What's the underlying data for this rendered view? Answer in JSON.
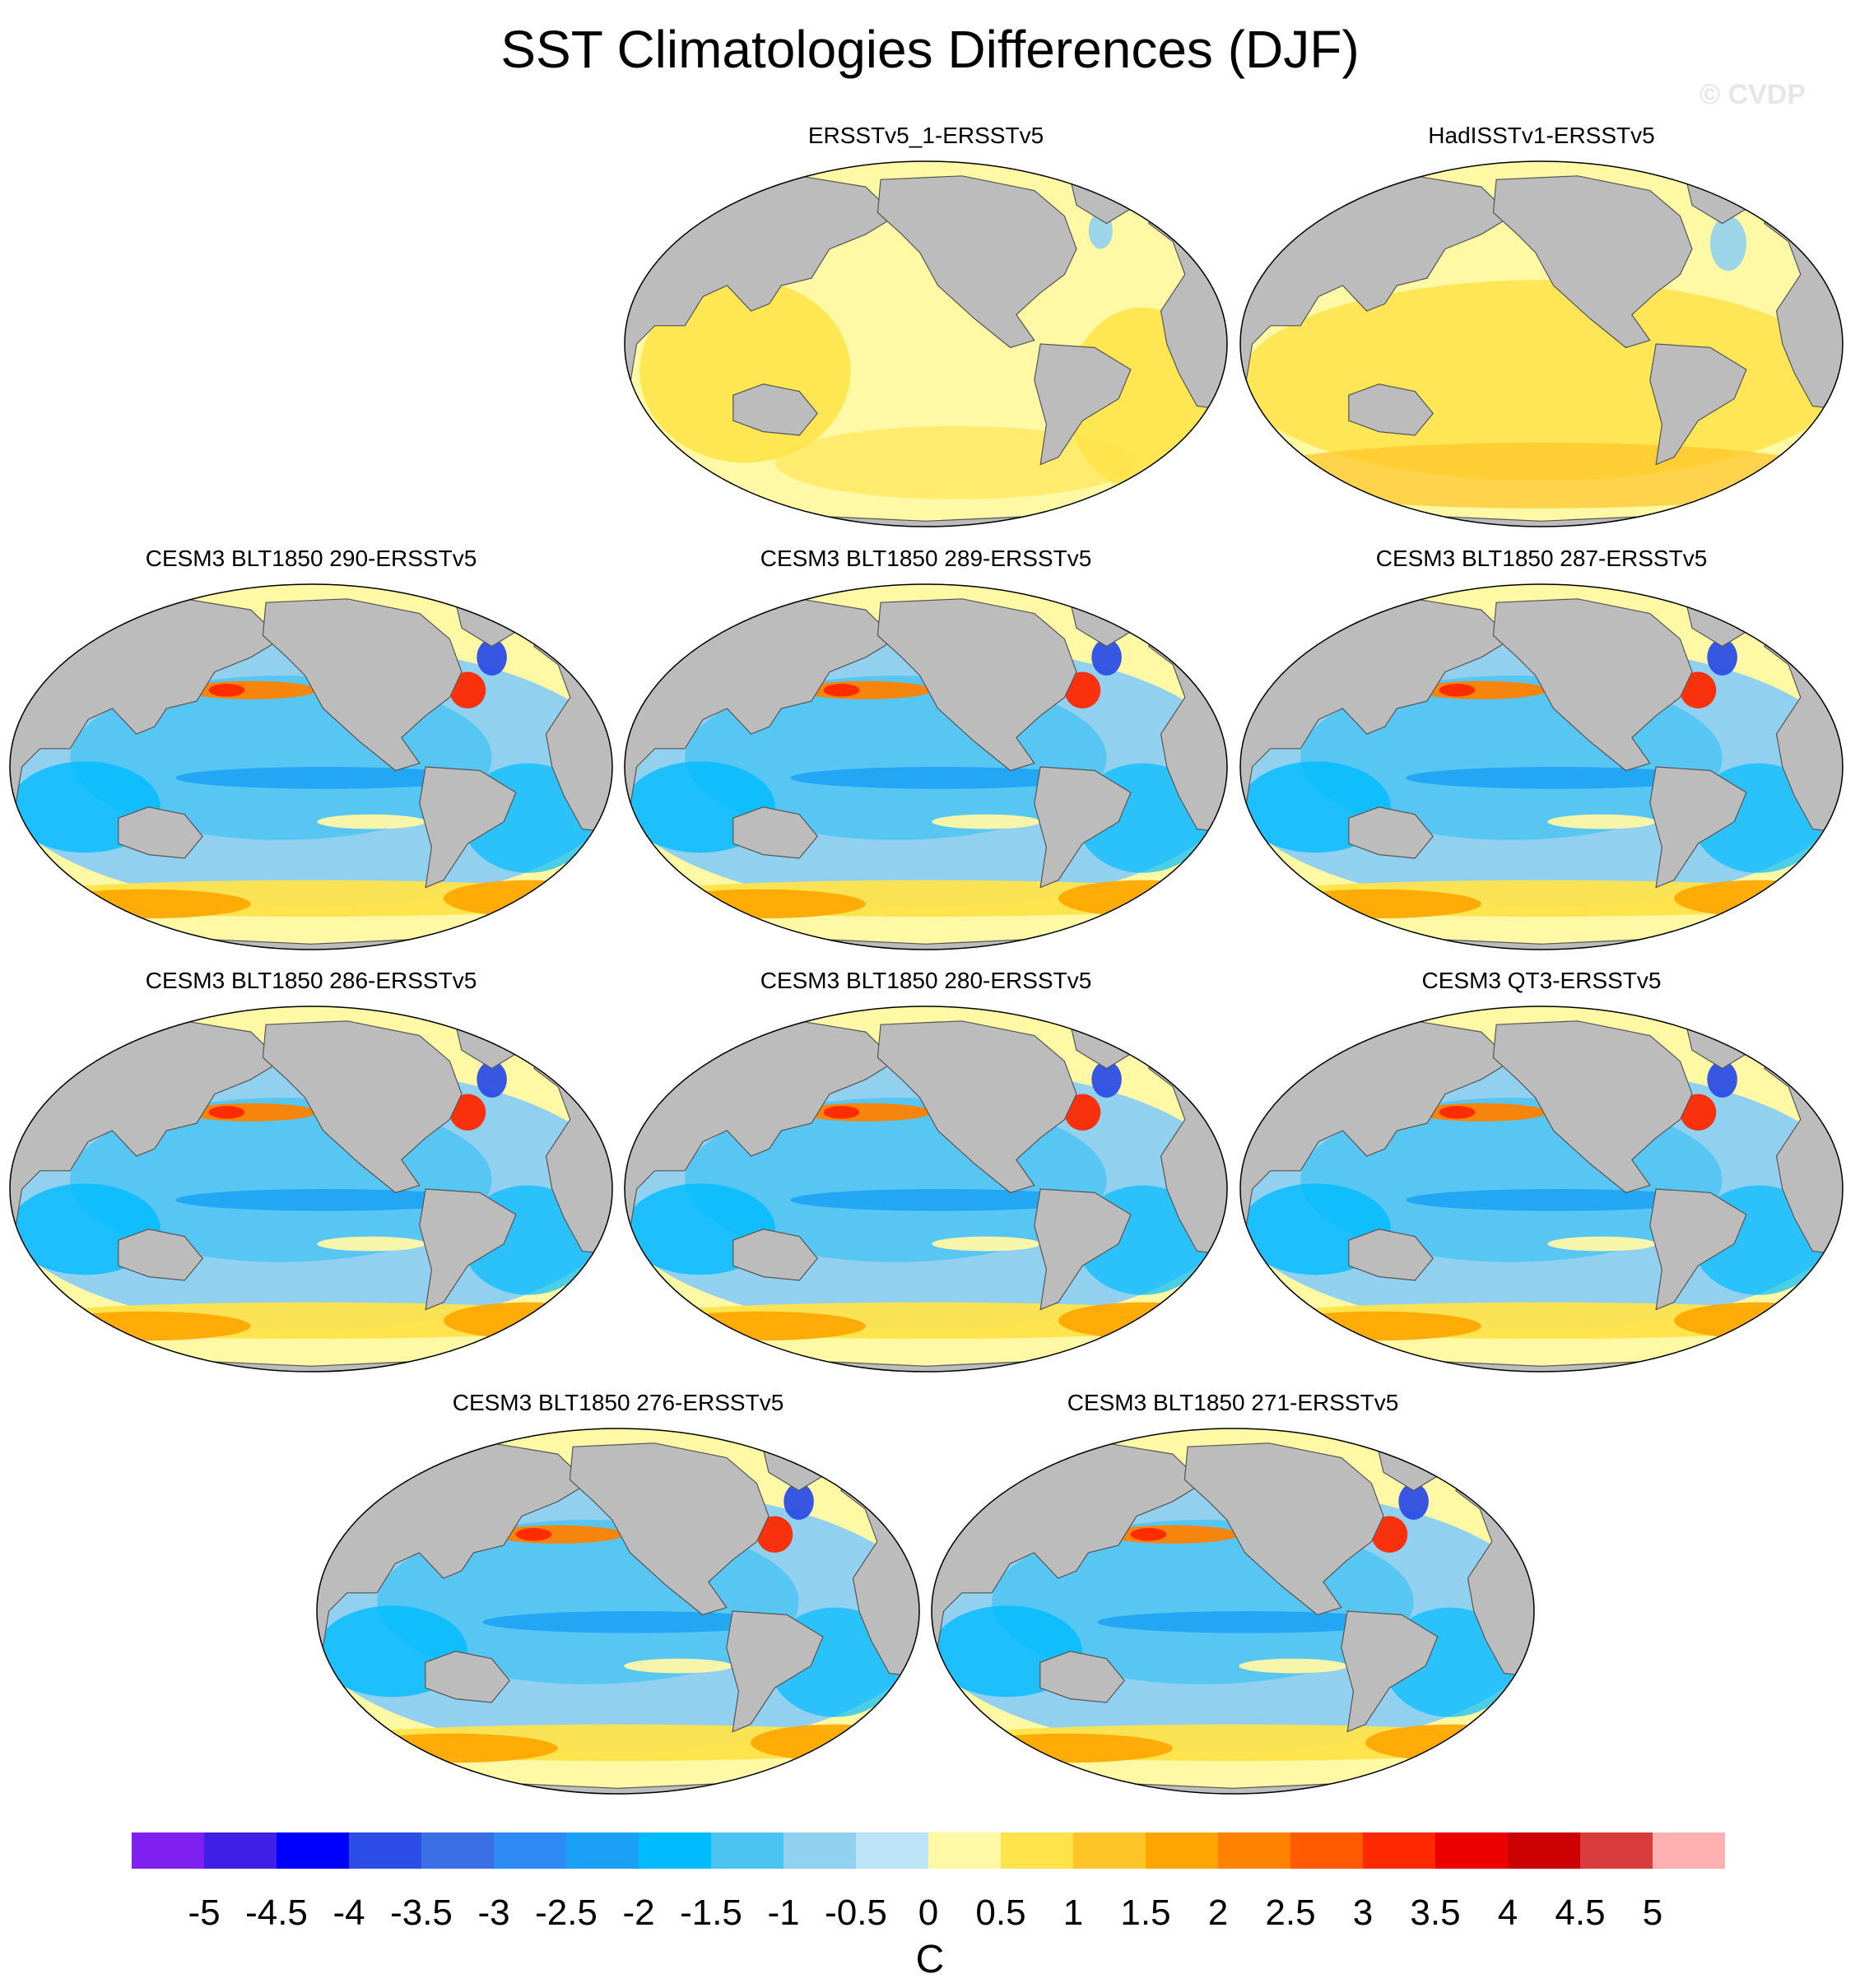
{
  "title": "SST Climatologies Differences (DJF)",
  "watermark": "© CVDP",
  "units": "C",
  "colors": {
    "ocean_background": "#fff8a4",
    "land": "#bcbcbc",
    "coast": "#555555",
    "arctic": "#fff8a4"
  },
  "colorbar": {
    "colors": [
      "#7f1ff0",
      "#4020e6",
      "#0000ff",
      "#2c4de6",
      "#3a6fe6",
      "#2d8af5",
      "#1aa0f5",
      "#00bcff",
      "#4cc4f2",
      "#92d0f0",
      "#bce3f6",
      "#fff8a4",
      "#ffe34a",
      "#ffc427",
      "#ffa500",
      "#ff8200",
      "#ff5a00",
      "#ff2800",
      "#ee0000",
      "#cc0000",
      "#d83c3c",
      "#ffb1b1"
    ],
    "labels": [
      "-5",
      "-4.5",
      "-4",
      "-3.5",
      "-3",
      "-2.5",
      "-2",
      "-1.5",
      "-1",
      "-0.5",
      "0",
      "0.5",
      "1",
      "1.5",
      "2",
      "2.5",
      "3",
      "3.5",
      "4",
      "4.5",
      "5"
    ]
  },
  "panels": [
    {
      "title": "ERSSTv5_1-ERSSTv5",
      "style": "obs1"
    },
    {
      "title": "HadISSTv1-ERSSTv5",
      "style": "obs2"
    },
    {
      "title": "CESM3 BLT1850 290-ERSSTv5",
      "style": "model"
    },
    {
      "title": "CESM3 BLT1850 289-ERSSTv5",
      "style": "model"
    },
    {
      "title": "CESM3 BLT1850 287-ERSSTv5",
      "style": "model"
    },
    {
      "title": "CESM3 BLT1850 286-ERSSTv5",
      "style": "model"
    },
    {
      "title": "CESM3 BLT1850 280-ERSSTv5",
      "style": "model"
    },
    {
      "title": "CESM3 QT3-ERSSTv5",
      "style": "model"
    },
    {
      "title": "CESM3 BLT1850 276-ERSSTv5",
      "style": "model"
    },
    {
      "title": "CESM3 BLT1850 271-ERSSTv5",
      "style": "model"
    }
  ]
}
